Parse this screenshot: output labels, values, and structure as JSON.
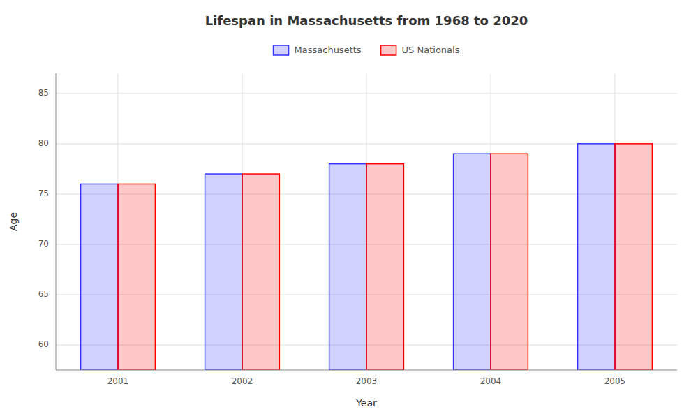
{
  "chart_data": {
    "type": "bar",
    "title": "Lifespan in Massachusetts from 1968 to 2020",
    "xlabel": "Year",
    "ylabel": "Age",
    "categories": [
      "2001",
      "2002",
      "2003",
      "2004",
      "2005"
    ],
    "series": [
      {
        "name": "Massachusetts",
        "color": "#3333ff",
        "values": [
          76,
          77,
          78,
          79,
          80
        ]
      },
      {
        "name": "US Nationals",
        "color": "#ff0000",
        "values": [
          76,
          77,
          78,
          79,
          80
        ]
      }
    ],
    "ylim": [
      57.5,
      87
    ],
    "yticks": [
      60,
      65,
      70,
      75,
      80,
      85
    ],
    "grid": true,
    "legend": "top"
  }
}
